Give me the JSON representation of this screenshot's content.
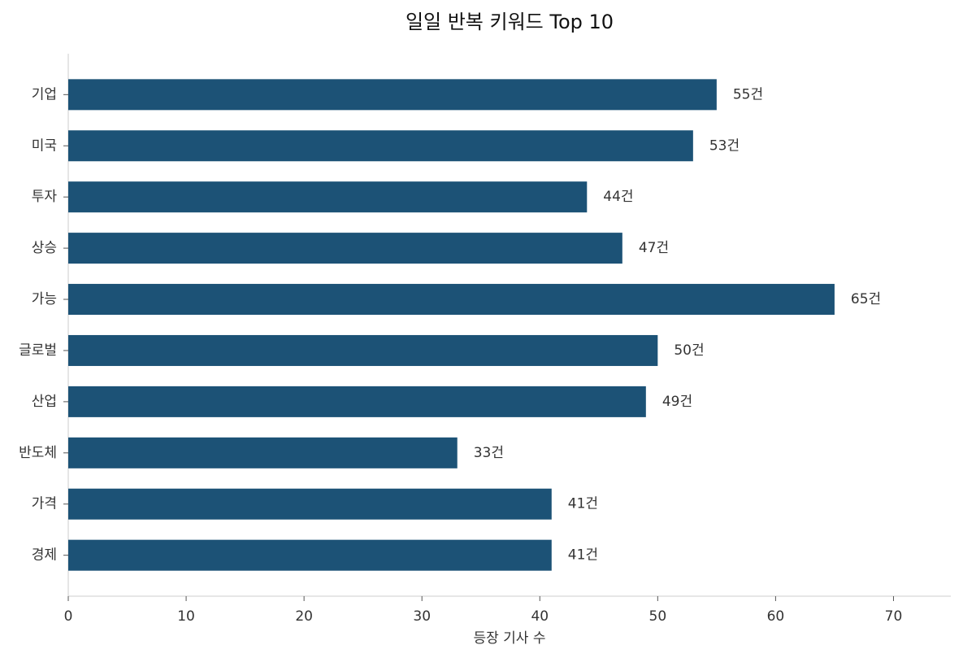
{
  "chart_data": {
    "type": "bar",
    "orientation": "horizontal",
    "title": "일일 반복 키워드 Top 10",
    "x_label": "등장 기사 수",
    "categories": [
      "기업",
      "미국",
      "투자",
      "상승",
      "가능",
      "글로벌",
      "산업",
      "반도체",
      "가격",
      "경제"
    ],
    "values": [
      55,
      53,
      44,
      47,
      65,
      50,
      49,
      33,
      41,
      41
    ],
    "value_labels": [
      "55건",
      "53건",
      "44건",
      "47건",
      "65건",
      "50건",
      "49건",
      "33건",
      "41건",
      "41건"
    ],
    "color": "#1c5276",
    "xlim": [
      0,
      75
    ],
    "xticks": [
      0,
      10,
      20,
      30,
      40,
      50,
      60,
      70
    ]
  }
}
